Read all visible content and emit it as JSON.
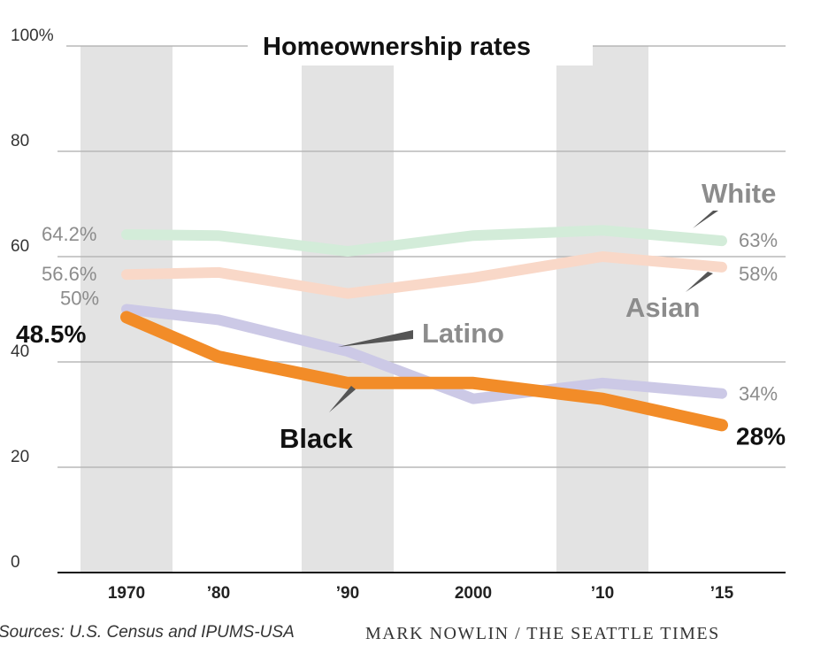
{
  "chart_data": {
    "type": "line",
    "title": "Homeownership rates",
    "categories": [
      "1970",
      "’80",
      "’90",
      "2000",
      "’10",
      "’15"
    ],
    "x": [
      1970,
      1980,
      1990,
      2000,
      2010,
      2015
    ],
    "y_ticks": [
      "100%",
      "80",
      "60",
      "40",
      "20",
      "0"
    ],
    "y_tick_values": [
      100,
      80,
      60,
      40,
      20,
      0
    ],
    "ylim": [
      0,
      100
    ],
    "grid": true,
    "series": [
      {
        "name": "White",
        "color": "#d3ecd9",
        "values": [
          64.2,
          64,
          61,
          64,
          65,
          63
        ],
        "start_label": "64.2%",
        "end_label": "63%"
      },
      {
        "name": "Asian",
        "color": "#f9d8c8",
        "values": [
          56.6,
          57,
          53,
          56,
          60,
          58
        ],
        "start_label": "56.6%",
        "end_label": "58%"
      },
      {
        "name": "Latino",
        "color": "#ccc9e6",
        "values": [
          50,
          48,
          42,
          33,
          36,
          34
        ],
        "start_label": "50%",
        "end_label": "34%"
      },
      {
        "name": "Black",
        "color": "#f28c28",
        "values": [
          48.5,
          41,
          36,
          36,
          33,
          28
        ],
        "start_label": "48.5%",
        "end_label": "28%"
      }
    ],
    "shaded_bands": [
      "1970",
      "’90",
      "’10"
    ]
  },
  "footer": {
    "source": "Sources: U.S. Census and IPUMS-USA",
    "credit": "MARK NOWLIN / THE SEATTLE TIMES"
  },
  "colors": {
    "band": "#e3e3e3",
    "grid": "#b8b8b8",
    "axis": "#111111",
    "label_gray": "#8c8c8c",
    "label_dark": "#111111"
  }
}
